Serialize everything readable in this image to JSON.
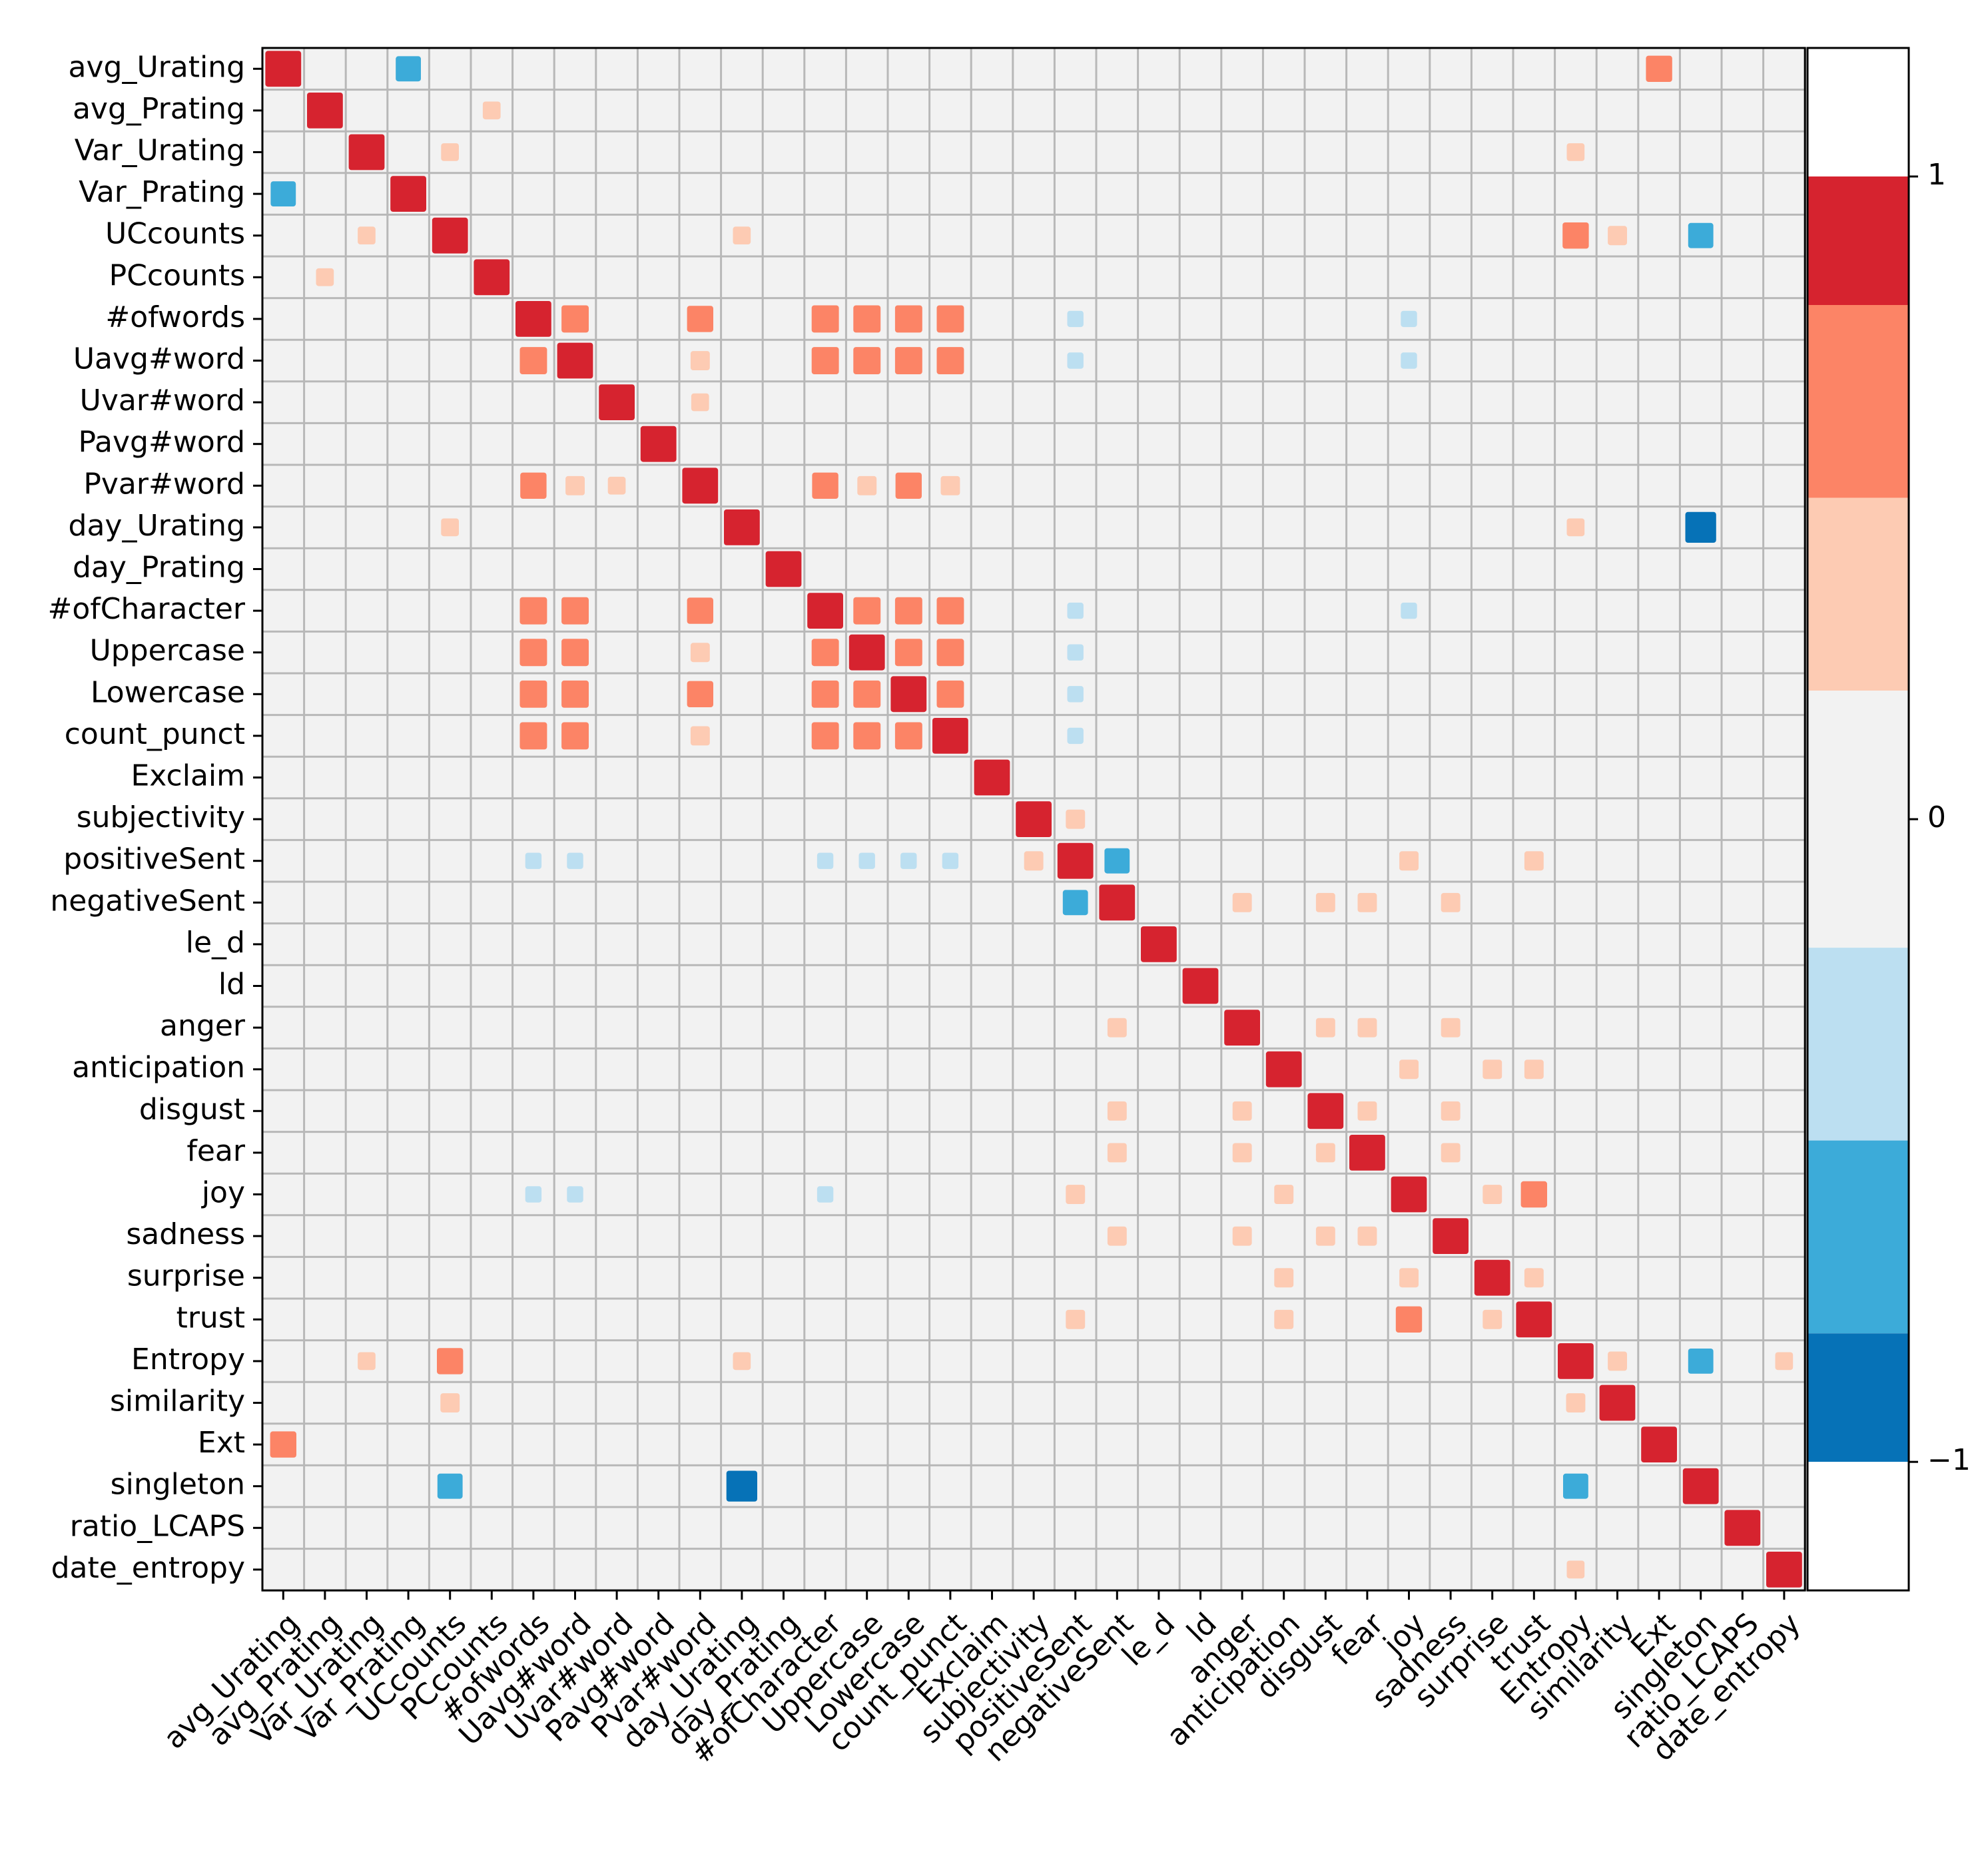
{
  "chart_data": {
    "type": "heatmap",
    "title": "",
    "xlabel": "",
    "ylabel": "",
    "labels": [
      "avg_Urating",
      "avg_Prating",
      "Var_Urating",
      "Var_Prating",
      "UCcounts",
      "PCcounts",
      "#ofwords",
      "Uavg#word",
      "Uvar#word",
      "Pavg#word",
      "Pvar#word",
      "day_Urating",
      "day_Prating",
      "#ofCharacter",
      "Uppercase",
      "Lowercase",
      "count_punct",
      "Exclaim",
      "subjectivity",
      "positiveSent",
      "negativeSent",
      "le_d",
      "ld",
      "anger",
      "anticipation",
      "disgust",
      "fear",
      "joy",
      "sadness",
      "surprise",
      "trust",
      "Entropy",
      "similarity",
      "Ext",
      "singleton",
      "ratio_LCAPS",
      "date_entropy"
    ],
    "colorbar": {
      "ticks": [
        1,
        0,
        -1
      ],
      "tick_labels": [
        "1",
        "0",
        "−1"
      ],
      "range": [
        -1.2,
        1.2
      ],
      "bins": [
        {
          "from": 1.0,
          "to": 1.2,
          "color": "#ffffff"
        },
        {
          "from": 0.8,
          "to": 1.0,
          "color": "#d6232f"
        },
        {
          "from": 0.5,
          "to": 0.8,
          "color": "#fc8466"
        },
        {
          "from": 0.2,
          "to": 0.5,
          "color": "#fdcbb3"
        },
        {
          "from": -0.2,
          "to": 0.2,
          "color": "#f2f2f2"
        },
        {
          "from": -0.5,
          "to": -0.2,
          "color": "#bcdff1"
        },
        {
          "from": -0.8,
          "to": -0.5,
          "color": "#3cabd9"
        },
        {
          "from": -1.0,
          "to": -0.8,
          "color": "#0672b7"
        },
        {
          "from": -1.2,
          "to": -1.0,
          "color": "#ffffff"
        }
      ]
    },
    "correlations": [
      {
        "row": "avg_Urating",
        "col": "Var_Prating",
        "value": -0.6
      },
      {
        "row": "avg_Urating",
        "col": "Ext",
        "value": 0.65
      },
      {
        "row": "avg_Prating",
        "col": "PCcounts",
        "value": 0.3
      },
      {
        "row": "Var_Urating",
        "col": "UCcounts",
        "value": 0.3
      },
      {
        "row": "Var_Urating",
        "col": "Entropy",
        "value": 0.3
      },
      {
        "row": "UCcounts",
        "col": "Entropy",
        "value": 0.65
      },
      {
        "row": "UCcounts",
        "col": "similarity",
        "value": 0.35
      },
      {
        "row": "UCcounts",
        "col": "singleton",
        "value": -0.6
      },
      {
        "row": "UCcounts",
        "col": "day_Urating",
        "value": 0.3
      },
      {
        "row": "#ofwords",
        "col": "Uavg#word",
        "value": 0.7
      },
      {
        "row": "#ofwords",
        "col": "Pvar#word",
        "value": 0.65
      },
      {
        "row": "#ofwords",
        "col": "#ofCharacter",
        "value": 0.7
      },
      {
        "row": "#ofwords",
        "col": "Uppercase",
        "value": 0.7
      },
      {
        "row": "#ofwords",
        "col": "Lowercase",
        "value": 0.7
      },
      {
        "row": "#ofwords",
        "col": "count_punct",
        "value": 0.7
      },
      {
        "row": "Uavg#word",
        "col": "Pvar#word",
        "value": 0.35
      },
      {
        "row": "Uavg#word",
        "col": "#ofCharacter",
        "value": 0.7
      },
      {
        "row": "Uavg#word",
        "col": "Uppercase",
        "value": 0.7
      },
      {
        "row": "Uavg#word",
        "col": "Lowercase",
        "value": 0.7
      },
      {
        "row": "Uavg#word",
        "col": "count_punct",
        "value": 0.7
      },
      {
        "row": "Uvar#word",
        "col": "Pvar#word",
        "value": 0.3
      },
      {
        "row": "Pvar#word",
        "col": "#ofCharacter",
        "value": 0.65
      },
      {
        "row": "Pvar#word",
        "col": "Uppercase",
        "value": 0.35
      },
      {
        "row": "Pvar#word",
        "col": "Lowercase",
        "value": 0.65
      },
      {
        "row": "Pvar#word",
        "col": "count_punct",
        "value": 0.35
      },
      {
        "row": "day_Urating",
        "col": "singleton",
        "value": -0.9
      },
      {
        "row": "day_Urating",
        "col": "Entropy",
        "value": 0.3
      },
      {
        "row": "#ofCharacter",
        "col": "Uppercase",
        "value": 0.7
      },
      {
        "row": "#ofCharacter",
        "col": "Lowercase",
        "value": 0.7
      },
      {
        "row": "#ofCharacter",
        "col": "count_punct",
        "value": 0.7
      },
      {
        "row": "Uppercase",
        "col": "Lowercase",
        "value": 0.7
      },
      {
        "row": "Uppercase",
        "col": "count_punct",
        "value": 0.7
      },
      {
        "row": "Lowercase",
        "col": "count_punct",
        "value": 0.7
      },
      {
        "row": "subjectivity",
        "col": "positiveSent",
        "value": 0.35
      },
      {
        "row": "positiveSent",
        "col": "negativeSent",
        "value": -0.6
      },
      {
        "row": "positiveSent",
        "col": "joy",
        "value": 0.35
      },
      {
        "row": "positiveSent",
        "col": "trust",
        "value": 0.35
      },
      {
        "row": "negativeSent",
        "col": "anger",
        "value": 0.35
      },
      {
        "row": "negativeSent",
        "col": "disgust",
        "value": 0.35
      },
      {
        "row": "negativeSent",
        "col": "fear",
        "value": 0.35
      },
      {
        "row": "negativeSent",
        "col": "sadness",
        "value": 0.35
      },
      {
        "row": "anger",
        "col": "disgust",
        "value": 0.35
      },
      {
        "row": "anger",
        "col": "fear",
        "value": 0.35
      },
      {
        "row": "anger",
        "col": "sadness",
        "value": 0.35
      },
      {
        "row": "anticipation",
        "col": "joy",
        "value": 0.35
      },
      {
        "row": "anticipation",
        "col": "surprise",
        "value": 0.35
      },
      {
        "row": "anticipation",
        "col": "trust",
        "value": 0.35
      },
      {
        "row": "disgust",
        "col": "fear",
        "value": 0.35
      },
      {
        "row": "disgust",
        "col": "sadness",
        "value": 0.35
      },
      {
        "row": "fear",
        "col": "sadness",
        "value": 0.35
      },
      {
        "row": "joy",
        "col": "surprise",
        "value": 0.35
      },
      {
        "row": "joy",
        "col": "trust",
        "value": 0.65
      },
      {
        "row": "surprise",
        "col": "trust",
        "value": 0.35
      },
      {
        "row": "Entropy",
        "col": "similarity",
        "value": 0.35
      },
      {
        "row": "Entropy",
        "col": "singleton",
        "value": -0.6
      },
      {
        "row": "Entropy",
        "col": "date_entropy",
        "value": 0.3
      }
    ],
    "weak_negative": [
      {
        "row": "avg_Urating",
        "col": "similarity",
        "value": -0.1
      },
      {
        "row": "#ofwords",
        "col": "positiveSent",
        "value": -0.25
      },
      {
        "row": "#ofwords",
        "col": "joy",
        "value": -0.25
      },
      {
        "row": "#ofwords",
        "col": "le_d",
        "value": -0.2
      },
      {
        "row": "Uavg#word",
        "col": "positiveSent",
        "value": -0.25
      },
      {
        "row": "Uavg#word",
        "col": "joy",
        "value": -0.25
      },
      {
        "row": "#ofCharacter",
        "col": "positiveSent",
        "value": -0.25
      },
      {
        "row": "#ofCharacter",
        "col": "joy",
        "value": -0.25
      },
      {
        "row": "Uppercase",
        "col": "positiveSent",
        "value": -0.25
      },
      {
        "row": "Lowercase",
        "col": "positiveSent",
        "value": -0.25
      },
      {
        "row": "count_punct",
        "col": "positiveSent",
        "value": -0.25
      },
      {
        "row": "avg_Prating",
        "col": "Pavg#word",
        "value": -0.2
      },
      {
        "row": "Var_Urating",
        "col": "singleton",
        "value": -0.2
      },
      {
        "row": "avg_Prating",
        "col": "Pvar#word",
        "value": -0.1
      }
    ]
  }
}
